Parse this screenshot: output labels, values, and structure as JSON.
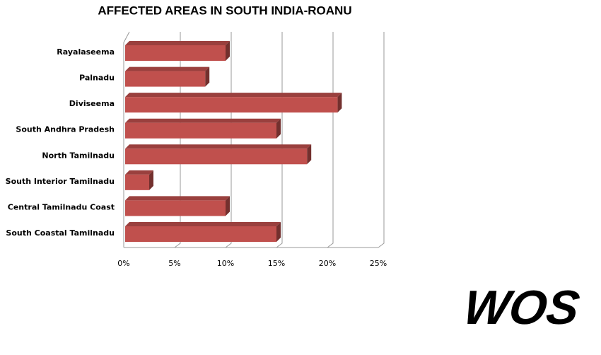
{
  "chart_data": {
    "type": "bar3d-horizontal",
    "title": "AFFECTED AREAS IN SOUTH INDIA-ROANU",
    "categories": [
      "Rayalaseema",
      "Palnadu",
      "Diviseema",
      "South Andhra Pradesh",
      "North Tamilnadu",
      "South Interior Tamilnadu",
      "Central Tamilnadu Coast",
      "South Coastal Tamilnadu"
    ],
    "values": [
      10,
      8,
      21,
      15,
      18,
      2.5,
      10,
      15
    ],
    "color": "#c0504d",
    "xlim": [
      0,
      25
    ],
    "xticks": [
      {
        "value": 0,
        "label": "0%"
      },
      {
        "value": 5,
        "label": "5%"
      },
      {
        "value": 10,
        "label": "10%"
      },
      {
        "value": 15,
        "label": "15%"
      },
      {
        "value": 20,
        "label": "20%"
      },
      {
        "value": 25,
        "label": "25%"
      }
    ],
    "grid": true
  },
  "watermark": "WOS"
}
